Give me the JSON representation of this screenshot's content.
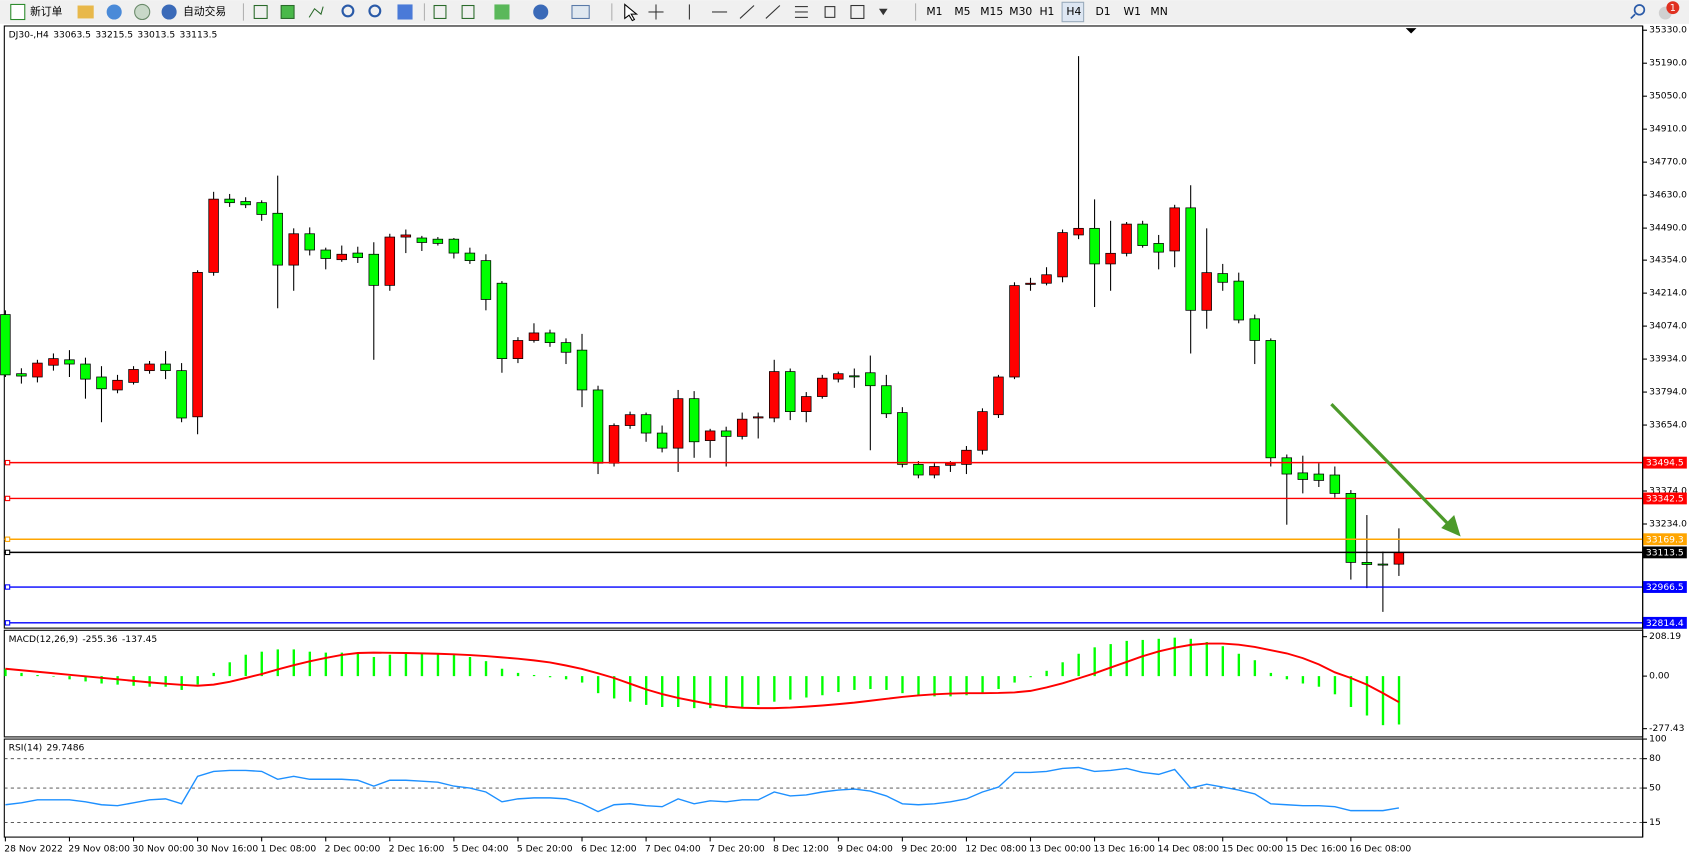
{
  "toolbar": {
    "buttons": [
      "新订单",
      "自动交易"
    ],
    "timeframes": [
      "M1",
      "M5",
      "M15",
      "M30",
      "H1",
      "H4",
      "D1",
      "W1",
      "MN"
    ],
    "notifications": 1
  },
  "chart_data": [
    {
      "type": "candlestick",
      "title": "DJ30-,H4",
      "readout": [
        33063.5,
        33215.5,
        33013.5,
        33113.5
      ],
      "up_color": "#ff0000",
      "down_color": "#00ff00",
      "categories": [
        "28 Nov 2022",
        null,
        null,
        null,
        "29 Nov 08:00",
        null,
        null,
        null,
        "30 Nov 00:00",
        null,
        null,
        null,
        "30 Nov 16:00",
        null,
        null,
        null,
        "1 Dec 08:00",
        null,
        null,
        null,
        "2 Dec 00:00",
        null,
        null,
        null,
        "2 Dec 16:00",
        null,
        null,
        null,
        "5 Dec 04:00",
        null,
        null,
        null,
        "5 Dec 20:00",
        null,
        null,
        null,
        "6 Dec 12:00",
        null,
        null,
        null,
        "7 Dec 04:00",
        null,
        null,
        null,
        "7 Dec 20:00",
        null,
        null,
        null,
        "8 Dec 12:00",
        null,
        null,
        null,
        "9 Dec 04:00",
        null,
        null,
        null,
        "9 Dec 20:00",
        null,
        null,
        null,
        "12 Dec 08:00",
        null,
        null,
        null,
        "13 Dec 00:00",
        null,
        null,
        null,
        "13 Dec 16:00",
        null,
        null,
        null,
        "14 Dec 08:00",
        null,
        null,
        null,
        "15 Dec 00:00",
        null,
        null,
        null,
        "15 Dec 16:00",
        null,
        null,
        null,
        "16 Dec 08:00",
        null,
        null,
        null
      ],
      "open": [
        34123,
        33872,
        33858,
        33908,
        33931,
        33913,
        33858,
        33803,
        33835,
        33885,
        33913,
        33885,
        33689,
        34302,
        34613,
        34603,
        34598,
        34553,
        34333,
        34466,
        34397,
        34356,
        34384,
        34379,
        34247,
        34452,
        34448,
        34443,
        34443,
        34384,
        34352,
        34256,
        33936,
        34013,
        34045,
        34004,
        33972,
        33803,
        33492,
        33652,
        33698,
        33620,
        33556,
        33766,
        33588,
        33629,
        33606,
        33684,
        33684,
        33881,
        33711,
        33775,
        33849,
        33863,
        33876,
        33821,
        33707,
        33487,
        33442,
        33483,
        33487,
        33547,
        33698,
        33858,
        34251,
        34256,
        34283,
        34461,
        34489,
        34338,
        34383,
        34507,
        34425,
        34393,
        34576,
        34141,
        34297,
        34265,
        34105,
        34013,
        33515,
        33451,
        33446,
        33442,
        33364,
        33071,
        33064,
        33063.5
      ],
      "high": [
        34141,
        33895,
        33931,
        33958,
        33972,
        33940,
        33904,
        33867,
        33904,
        33926,
        33968,
        33917,
        34311,
        34644,
        34635,
        34621,
        34608,
        34713,
        34489,
        34493,
        34407,
        34416,
        34411,
        34430,
        34466,
        34484,
        34457,
        34452,
        34448,
        34407,
        34379,
        34265,
        34027,
        34086,
        34059,
        34022,
        34041,
        33821,
        33661,
        33711,
        33707,
        33652,
        33803,
        33798,
        33638,
        33647,
        33707,
        33707,
        33931,
        33894,
        33794,
        33867,
        33881,
        33894,
        33949,
        33867,
        33730,
        33501,
        33492,
        33501,
        33565,
        33725,
        33867,
        34260,
        34279,
        34324,
        34484,
        35220,
        34612,
        34521,
        34516,
        34521,
        34461,
        34589,
        34672,
        34489,
        34338,
        34301,
        34123,
        34022,
        33529,
        33524,
        33492,
        33478,
        33378,
        33272,
        33117,
        33215.5
      ],
      "low": [
        33858,
        33830,
        33835,
        33885,
        33858,
        33766,
        33666,
        33789,
        33826,
        33872,
        33849,
        33666,
        33615,
        34288,
        34580,
        34575,
        34521,
        34150,
        34224,
        34374,
        34315,
        34347,
        34342,
        33931,
        34224,
        34384,
        34393,
        34416,
        34361,
        34338,
        34141,
        33876,
        33917,
        34004,
        33986,
        33913,
        33730,
        33446,
        33478,
        33638,
        33583,
        33538,
        33455,
        33515,
        33515,
        33478,
        33593,
        33597,
        33666,
        33675,
        33666,
        33766,
        33835,
        33812,
        33547,
        33684,
        33474,
        33428,
        33428,
        33455,
        33446,
        33529,
        33684,
        33849,
        34224,
        34247,
        34260,
        34443,
        34155,
        34224,
        34370,
        34407,
        34315,
        34324,
        33958,
        34063,
        34224,
        34086,
        33913,
        33478,
        33231,
        33364,
        33391,
        33346,
        32998,
        32962,
        32861,
        33013.5
      ],
      "close": [
        33867,
        33862,
        33917,
        33936,
        33913,
        33849,
        33808,
        33844,
        33890,
        33913,
        33885,
        33684,
        34302,
        34613,
        34598,
        34589,
        34548,
        34333,
        34466,
        34397,
        34361,
        34379,
        34365,
        34247,
        34452,
        34461,
        34429,
        34425,
        34384,
        34352,
        34187,
        33936,
        34013,
        34045,
        34004,
        33963,
        33803,
        33492,
        33652,
        33698,
        33620,
        33556,
        33766,
        33583,
        33629,
        33606,
        33679,
        33689,
        33881,
        33711,
        33775,
        33853,
        33872,
        33862,
        33821,
        33702,
        33487,
        33442,
        33478,
        33492,
        33547,
        33711,
        33858,
        34246,
        34256,
        34292,
        34471,
        34489,
        34338,
        34383,
        34507,
        34416,
        34388,
        34576,
        34141,
        34301,
        34260,
        34100,
        34013,
        33515,
        33446,
        33423,
        33419,
        33364,
        33071,
        33062,
        33063,
        33113.5
      ],
      "ylim": [
        32792,
        35348
      ],
      "yticks": [
        {
          "value": 35330,
          "label": "35330.0"
        },
        {
          "value": 35190,
          "label": "35190.0"
        },
        {
          "value": 35050,
          "label": "35050.0"
        },
        {
          "value": 34910,
          "label": "34910.0"
        },
        {
          "value": 34770,
          "label": "34770.0"
        },
        {
          "value": 34630,
          "label": "34630.0"
        },
        {
          "value": 34490,
          "label": "34490.0"
        },
        {
          "value": 34354,
          "label": "34354.0"
        },
        {
          "value": 34214,
          "label": "34214.0"
        },
        {
          "value": 34074,
          "label": "34074.0"
        },
        {
          "value": 33934,
          "label": "33934.0"
        },
        {
          "value": 33794,
          "label": "33794.0"
        },
        {
          "value": 33654,
          "label": "33654.0"
        },
        {
          "value": 33374,
          "label": "33374.0"
        },
        {
          "value": 33234,
          "label": "33234.0"
        }
      ],
      "levels": [
        {
          "value": 33494.5,
          "color": "#ff0000"
        },
        {
          "value": 33342.5,
          "color": "#ff0000"
        },
        {
          "value": 33169.3,
          "color": "#ffa500"
        },
        {
          "value": 33113.5,
          "color": "#000000"
        },
        {
          "value": 32966.5,
          "color": "#0000ff"
        },
        {
          "value": 32814.4,
          "color": "#0000ff"
        }
      ]
    },
    {
      "type": "macd",
      "title": "MACD(12,26,9)",
      "readout": [
        -255.36,
        -137.45
      ],
      "histogram_color": "#00ff00",
      "signal_color": "#ff0000",
      "histogram": [
        39,
        17,
        6,
        -3,
        -17,
        -28,
        -39,
        -45,
        -51,
        -56,
        -56,
        -73,
        -45,
        17,
        73,
        113,
        129,
        141,
        141,
        129,
        124,
        124,
        118,
        101,
        113,
        124,
        124,
        118,
        113,
        101,
        79,
        39,
        17,
        6,
        -6,
        -17,
        -34,
        -90,
        -118,
        -135,
        -152,
        -163,
        -163,
        -169,
        -169,
        -169,
        -163,
        -152,
        -135,
        -124,
        -113,
        -101,
        -84,
        -73,
        -68,
        -73,
        -90,
        -101,
        -107,
        -107,
        -101,
        -90,
        -68,
        -34,
        -6,
        28,
        73,
        118,
        152,
        169,
        186,
        191,
        197,
        203,
        197,
        180,
        158,
        118,
        84,
        17,
        -17,
        -39,
        -56,
        -96,
        -163,
        -208,
        -259,
        -255.36
      ],
      "signal": [
        39,
        31,
        23,
        15,
        7,
        -1,
        -9,
        -17,
        -25,
        -33,
        -40,
        -46,
        -51,
        -45,
        -30,
        -10,
        11,
        35,
        58,
        78,
        96,
        112,
        122,
        124,
        123,
        122,
        120,
        118,
        115,
        111,
        106,
        99,
        92,
        83,
        72,
        56,
        38,
        15,
        -10,
        -40,
        -70,
        -95,
        -115,
        -132,
        -148,
        -160,
        -167,
        -169,
        -169,
        -166,
        -161,
        -155,
        -148,
        -140,
        -130,
        -120,
        -110,
        -102,
        -96,
        -92,
        -90,
        -90,
        -89,
        -86,
        -78,
        -60,
        -38,
        -12,
        15,
        45,
        75,
        105,
        130,
        150,
        165,
        172,
        172,
        166,
        154,
        137,
        120,
        95,
        62,
        20,
        -10,
        -45,
        -90,
        -137.45
      ],
      "ylim": [
        -321,
        242
      ],
      "yticks": [
        208.19,
        {
          "value": 0,
          "label": "0.00"
        },
        -277.43
      ]
    },
    {
      "type": "line",
      "title": "RSI(14)",
      "readout": [
        29.7486
      ],
      "color": "#1e90ff",
      "dashed_levels": true,
      "values": [
        33,
        35,
        38,
        38,
        38,
        36,
        33,
        32,
        35,
        38,
        39,
        34,
        62,
        67,
        68,
        68,
        67,
        59,
        62,
        59,
        59,
        59,
        58,
        52,
        58,
        58,
        57,
        56,
        52,
        50,
        46,
        36,
        39,
        40,
        40,
        39,
        34,
        26,
        33,
        34,
        32,
        31,
        39,
        34,
        37,
        36,
        38,
        38,
        46,
        42,
        43,
        46,
        48,
        49,
        47,
        42,
        34,
        33,
        34,
        36,
        39,
        46,
        51,
        66,
        66,
        67,
        70,
        71,
        67,
        68,
        70,
        66,
        64,
        69,
        50,
        54,
        51,
        48,
        44,
        34,
        33,
        32,
        32,
        31,
        27,
        27,
        27,
        29.7486
      ],
      "ylim": [
        0,
        100
      ],
      "yticks": [
        100,
        80,
        50,
        15
      ]
    }
  ]
}
